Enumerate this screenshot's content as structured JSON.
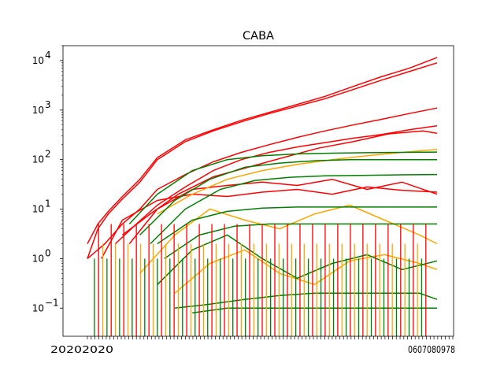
{
  "chart_data": {
    "type": "line",
    "title": "CABA",
    "xlabel": "",
    "ylabel": "",
    "yscale": "log",
    "ylim": [
      0.027,
      20000
    ],
    "xlim": [
      0,
      100
    ],
    "yticks": [
      {
        "value": 0.1,
        "base": "10",
        "exp": "−1"
      },
      {
        "value": 1,
        "base": "10",
        "exp": "0"
      },
      {
        "value": 10,
        "base": "10",
        "exp": "1"
      },
      {
        "value": 100,
        "base": "10",
        "exp": "2"
      },
      {
        "value": 1000,
        "base": "10",
        "exp": "3"
      },
      {
        "value": 10000,
        "base": "10",
        "exp": "4"
      }
    ],
    "x_tick_count": 98,
    "x_tick_text_left": "20202020",
    "x_tick_text_right": "0607080978",
    "grid": false,
    "legend": "none",
    "colors": {
      "red": "#ff0000",
      "orange": "#ffa500",
      "green": "#008000"
    },
    "series": [
      {
        "color": "red",
        "x": [
          0,
          3,
          6,
          10,
          15,
          20,
          28,
          36,
          44,
          52,
          60,
          68,
          76,
          84,
          92,
          100
        ],
        "y": [
          2,
          5,
          9,
          18,
          40,
          110,
          250,
          400,
          620,
          900,
          1300,
          1900,
          3000,
          4700,
          7000,
          11500
        ]
      },
      {
        "color": "red",
        "x": [
          0,
          3,
          6,
          10,
          15,
          20,
          28,
          36,
          44,
          52,
          60,
          68,
          76,
          84,
          92,
          100
        ],
        "y": [
          1,
          4,
          8,
          16,
          35,
          100,
          230,
          380,
          580,
          850,
          1200,
          1700,
          2600,
          4000,
          6000,
          9000
        ]
      },
      {
        "color": "red",
        "x": [
          0,
          5,
          10,
          15,
          20,
          28,
          36,
          44,
          52,
          60,
          68,
          76,
          84,
          92,
          100
        ],
        "y": [
          1,
          2,
          5,
          10,
          25,
          50,
          90,
          140,
          200,
          280,
          380,
          500,
          650,
          850,
          1100
        ]
      },
      {
        "color": "red",
        "x": [
          8,
          14,
          20,
          28,
          36,
          44,
          52,
          60,
          68,
          76,
          84,
          92,
          100
        ],
        "y": [
          2,
          5,
          12,
          28,
          60,
          100,
          140,
          180,
          220,
          270,
          320,
          400,
          480
        ]
      },
      {
        "color": "red",
        "x": [
          10,
          18,
          26,
          36,
          46,
          56,
          66,
          76,
          86,
          96,
          100
        ],
        "y": [
          3,
          8,
          20,
          45,
          70,
          110,
          170,
          230,
          330,
          380,
          340
        ]
      },
      {
        "color": "red",
        "x": [
          12,
          20,
          30,
          40,
          50,
          60,
          70,
          80,
          90,
          100
        ],
        "y": [
          2,
          10,
          25,
          30,
          35,
          30,
          40,
          25,
          35,
          20
        ]
      },
      {
        "color": "red",
        "x": [
          4,
          10,
          20,
          30,
          40,
          50,
          60,
          70,
          80,
          90,
          100
        ],
        "y": [
          1,
          6,
          15,
          20,
          18,
          22,
          25,
          20,
          28,
          24,
          22
        ]
      },
      {
        "color": "orange",
        "x": [
          20,
          30,
          40,
          50,
          60,
          70,
          80,
          90,
          100
        ],
        "y": [
          8,
          20,
          40,
          60,
          80,
          100,
          120,
          140,
          160
        ]
      },
      {
        "color": "orange",
        "x": [
          15,
          25,
          35,
          45,
          55,
          65,
          75,
          85,
          95,
          100
        ],
        "y": [
          0.5,
          3,
          10,
          6,
          4,
          8,
          12,
          6,
          3,
          2
        ]
      },
      {
        "color": "orange",
        "x": [
          25,
          35,
          45,
          55,
          65,
          75,
          85,
          95,
          100
        ],
        "y": [
          0.2,
          0.8,
          1.5,
          0.5,
          0.3,
          0.9,
          1.2,
          0.8,
          0.6
        ]
      },
      {
        "color": "green",
        "x": [
          12,
          20,
          30,
          40,
          50,
          60,
          70,
          80,
          90,
          100
        ],
        "y": [
          5,
          20,
          60,
          100,
          120,
          130,
          135,
          138,
          140,
          142
        ]
      },
      {
        "color": "green",
        "x": [
          15,
          25,
          35,
          45,
          55,
          65,
          75,
          85,
          95,
          100
        ],
        "y": [
          3,
          15,
          40,
          70,
          85,
          95,
          100,
          100,
          100,
          100
        ]
      },
      {
        "color": "green",
        "x": [
          18,
          28,
          38,
          48,
          58,
          68,
          78,
          88,
          100
        ],
        "y": [
          2,
          10,
          25,
          38,
          44,
          47,
          48,
          49,
          50
        ]
      },
      {
        "color": "green",
        "x": [
          20,
          30,
          40,
          50,
          60,
          70,
          80,
          90,
          100
        ],
        "y": [
          2,
          6,
          9,
          10.5,
          11,
          11,
          11,
          11,
          11
        ]
      },
      {
        "color": "green",
        "x": [
          22,
          32,
          42,
          52,
          62,
          72,
          82,
          92,
          100
        ],
        "y": [
          1,
          3,
          4.5,
          5,
          5,
          5,
          5,
          5,
          5
        ]
      },
      {
        "color": "green",
        "x": [
          20,
          30,
          40,
          50,
          60,
          70,
          80,
          90,
          100
        ],
        "y": [
          0.3,
          1.5,
          3,
          1,
          0.4,
          0.8,
          1.2,
          0.6,
          0.9
        ]
      },
      {
        "color": "green",
        "x": [
          25,
          35,
          45,
          55,
          65,
          75,
          85,
          95,
          100
        ],
        "y": [
          0.1,
          0.12,
          0.15,
          0.18,
          0.2,
          0.2,
          0.2,
          0.2,
          0.15
        ]
      },
      {
        "color": "green",
        "x": [
          30,
          40,
          50,
          60,
          70,
          80,
          90,
          100
        ],
        "y": [
          0.08,
          0.1,
          0.1,
          0.1,
          0.1,
          0.1,
          0.1,
          0.1
        ]
      }
    ]
  }
}
